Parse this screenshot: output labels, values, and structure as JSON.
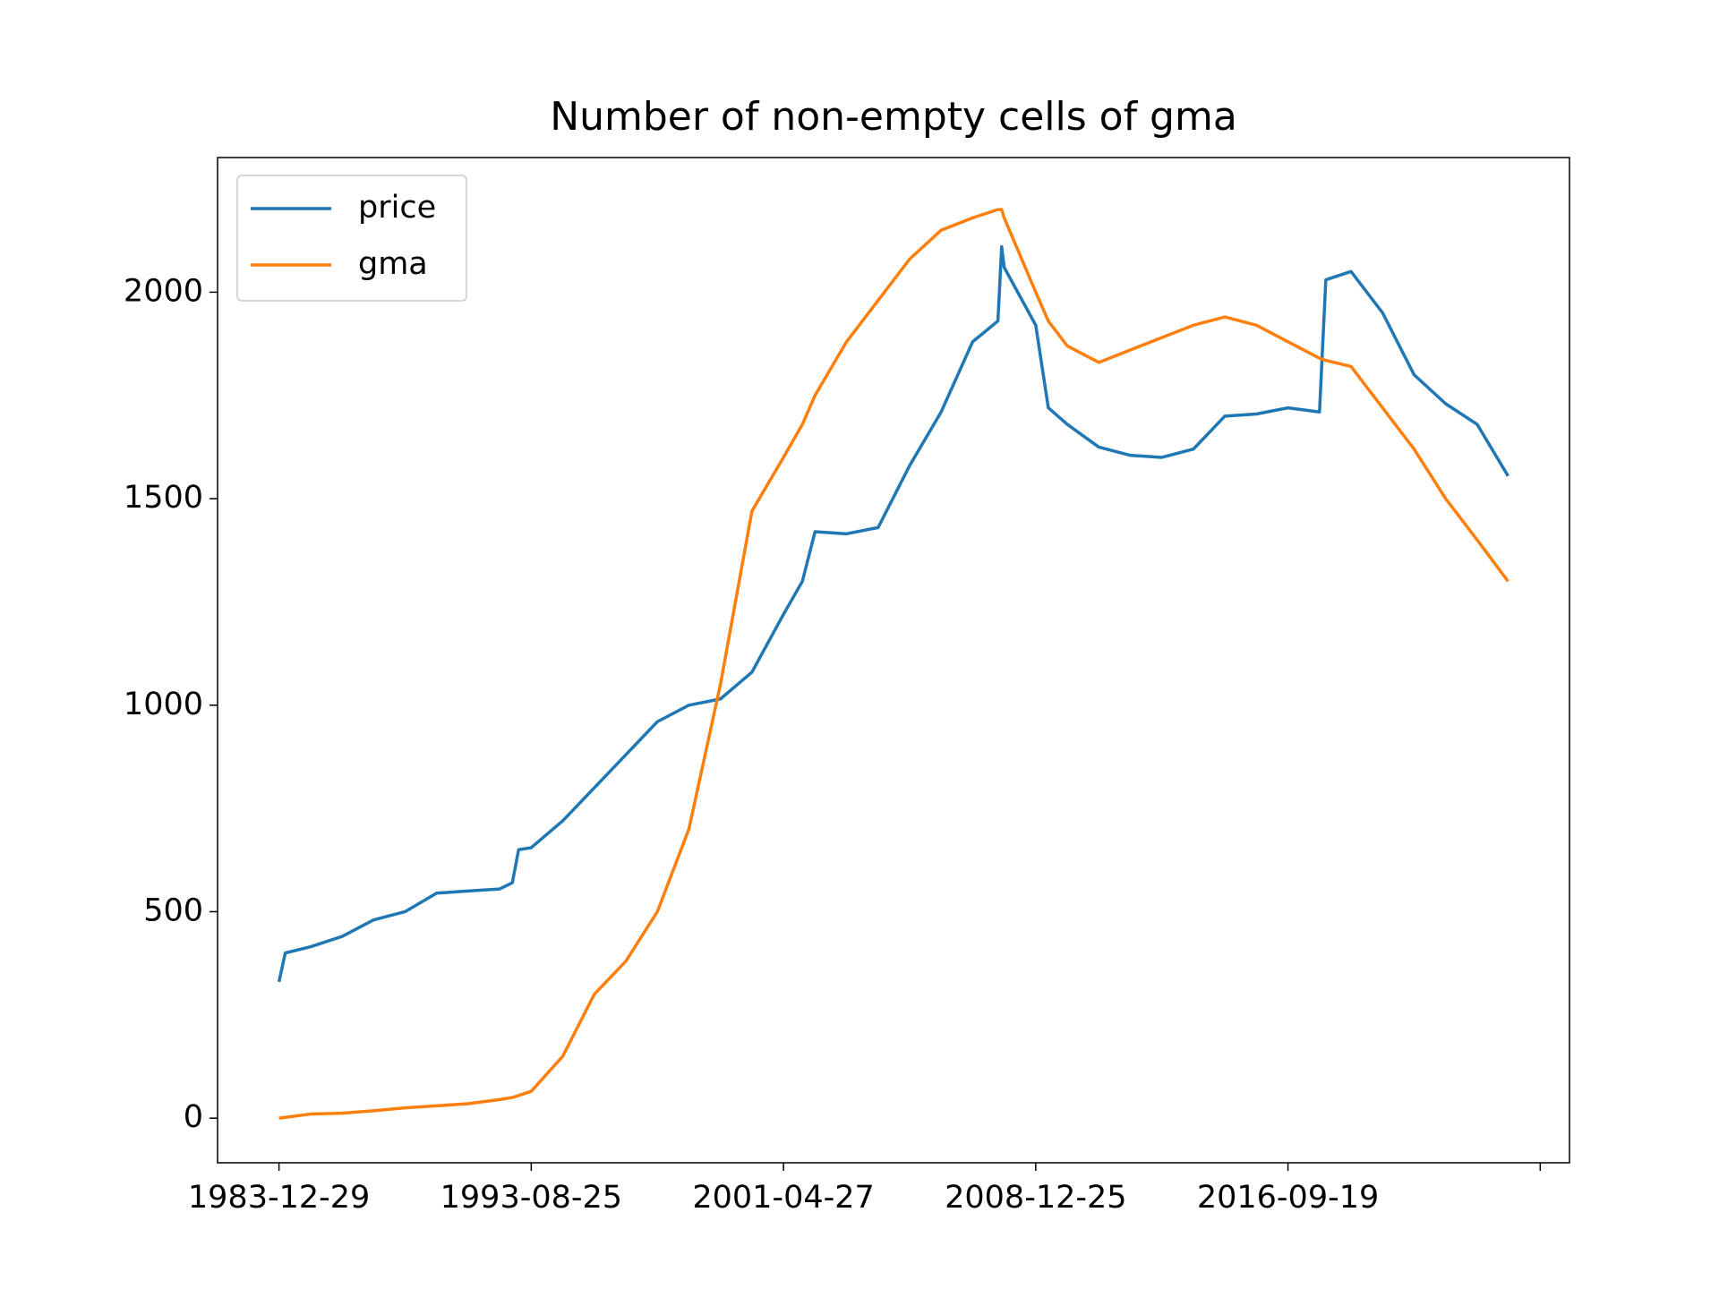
{
  "chart_data": {
    "type": "line",
    "title": "Number of non-empty cells of gma",
    "x": [
      0,
      50,
      250,
      500,
      750,
      1000,
      1250,
      1500,
      1750,
      1850,
      1900,
      2000,
      2250,
      2500,
      2750,
      3000,
      3250,
      3500,
      3750,
      4000,
      4150,
      4250,
      4500,
      4750,
      5000,
      5250,
      5500,
      5700,
      5730,
      5750,
      6000,
      6100,
      6250,
      6500,
      6750,
      7000,
      7250,
      7500,
      7750,
      8000,
      8250,
      8300,
      8500,
      8750,
      9000,
      9250,
      9500,
      9745
    ],
    "series": [
      {
        "name": "price",
        "color": "#1f77b4",
        "values": [
          330,
          400,
          415,
          440,
          480,
          500,
          545,
          550,
          555,
          570,
          650,
          655,
          720,
          800,
          880,
          960,
          1000,
          1015,
          1080,
          1220,
          1300,
          1420,
          1415,
          1430,
          1580,
          1710,
          1880,
          1930,
          2110,
          2060,
          1920,
          1720,
          1680,
          1625,
          1605,
          1600,
          1620,
          1700,
          1705,
          1720,
          1710,
          2030,
          2050,
          1950,
          1800,
          1730,
          1680,
          1555
        ]
      },
      {
        "name": "gma",
        "color": "#ff7f0e",
        "values": [
          0,
          2,
          10,
          12,
          18,
          25,
          30,
          35,
          45,
          50,
          55,
          65,
          150,
          300,
          380,
          500,
          700,
          1050,
          1470,
          1600,
          1680,
          1750,
          1880,
          1980,
          2080,
          2150,
          2180,
          2200,
          2200,
          2180,
          2000,
          1930,
          1870,
          1830,
          1860,
          1890,
          1920,
          1940,
          1920,
          1880,
          1840,
          1835,
          1820,
          1720,
          1620,
          1500,
          1400,
          1300
        ]
      }
    ],
    "xlim": [
      -487,
      10232
    ],
    "xticks": [
      {
        "value": 0,
        "label": "1983-12-29"
      },
      {
        "value": 2000,
        "label": "1993-08-25"
      },
      {
        "value": 4000,
        "label": "2001-04-27"
      },
      {
        "value": 6000,
        "label": "2008-12-25"
      },
      {
        "value": 8000,
        "label": "2016-09-19"
      },
      {
        "value": 10000,
        "label": null
      }
    ],
    "ylim": [
      -108,
      2326
    ],
    "yticks": [
      0,
      500,
      1000,
      1500,
      2000
    ],
    "legend": "upper left"
  }
}
